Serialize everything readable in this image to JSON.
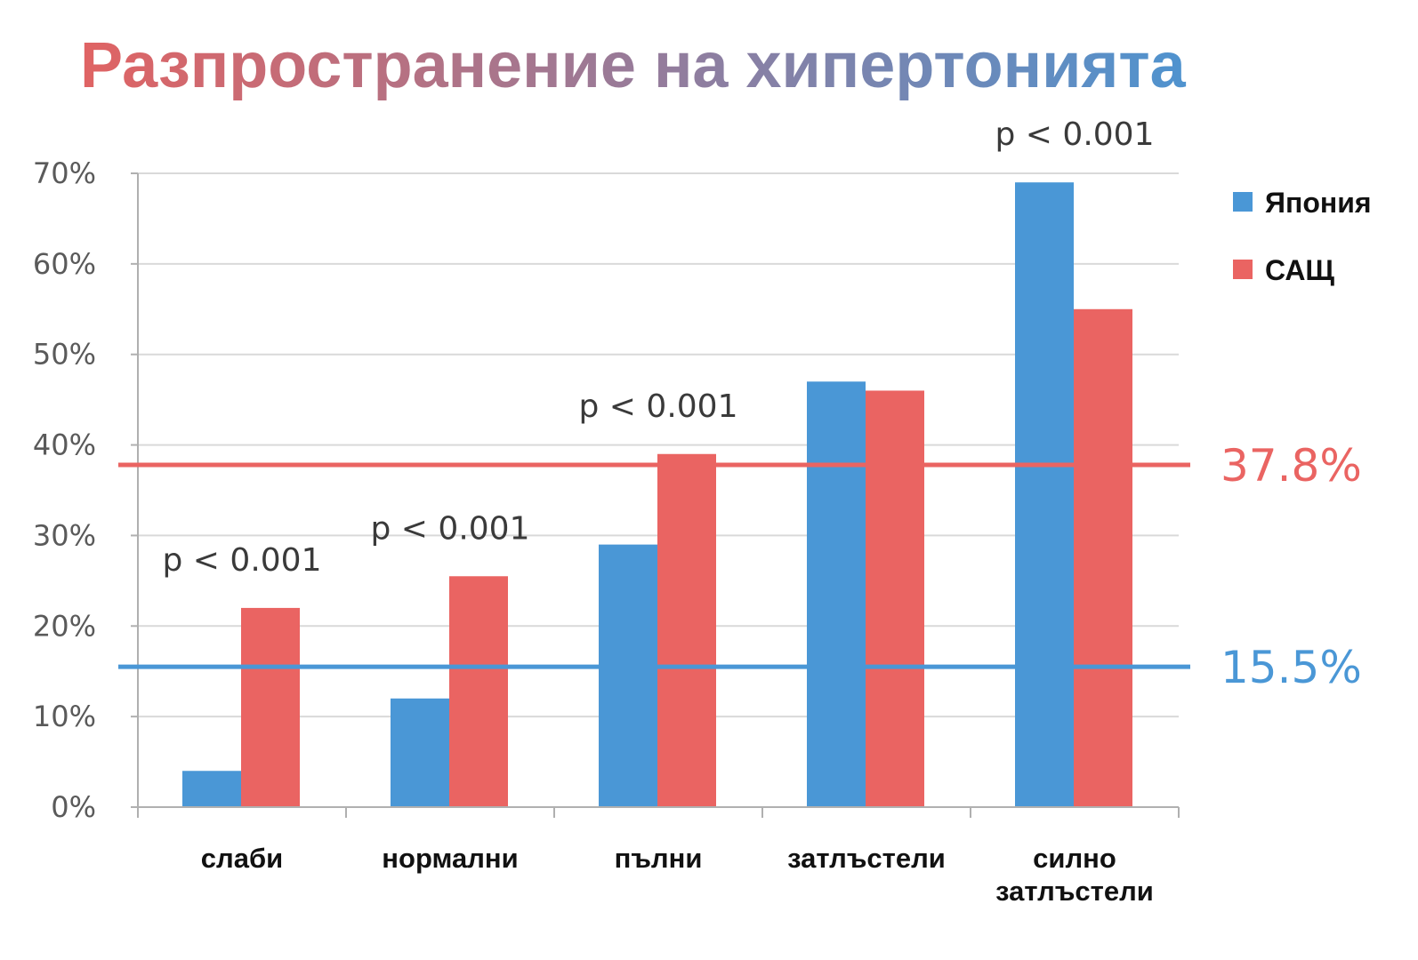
{
  "title": "Разпространение на хипертонията",
  "colors": {
    "japan": "#4a97d6",
    "usa": "#ea6462",
    "title_start": "#e06363",
    "title_end": "#4f93cf",
    "ref_usa": "#ea6462",
    "ref_japan": "#4a97d6",
    "grid": "#d9d9d9",
    "axis": "#b0b0b0"
  },
  "chart_data": {
    "type": "bar",
    "title": "Разпространение на хипертонията",
    "categories": [
      [
        "слаби"
      ],
      [
        "нормални"
      ],
      [
        "пълни"
      ],
      [
        "затлъстели"
      ],
      [
        "силно",
        "затлъстели"
      ]
    ],
    "series": [
      {
        "name": "Япония",
        "values": [
          4,
          12,
          29,
          47,
          69
        ]
      },
      {
        "name": "САЩ",
        "values": [
          22,
          25.5,
          39,
          46,
          55
        ]
      }
    ],
    "yticks": [
      "0%",
      "10%",
      "20%",
      "30%",
      "40%",
      "50%",
      "60%",
      "70%"
    ],
    "ylim": [
      0,
      70
    ],
    "grid": true,
    "legend_position": "right",
    "reference_lines": [
      {
        "label": "37.8%",
        "value": 37.8,
        "color": "#ea6462"
      },
      {
        "label": "15.5%",
        "value": 15.5,
        "color": "#4a97d6"
      }
    ],
    "annotations": [
      {
        "category_index": 0,
        "text": "p < 0.001"
      },
      {
        "category_index": 1,
        "text": "p < 0.001"
      },
      {
        "category_index": 2,
        "text": "p < 0.001"
      },
      {
        "category_index": 4,
        "text": "p < 0.001"
      }
    ]
  }
}
